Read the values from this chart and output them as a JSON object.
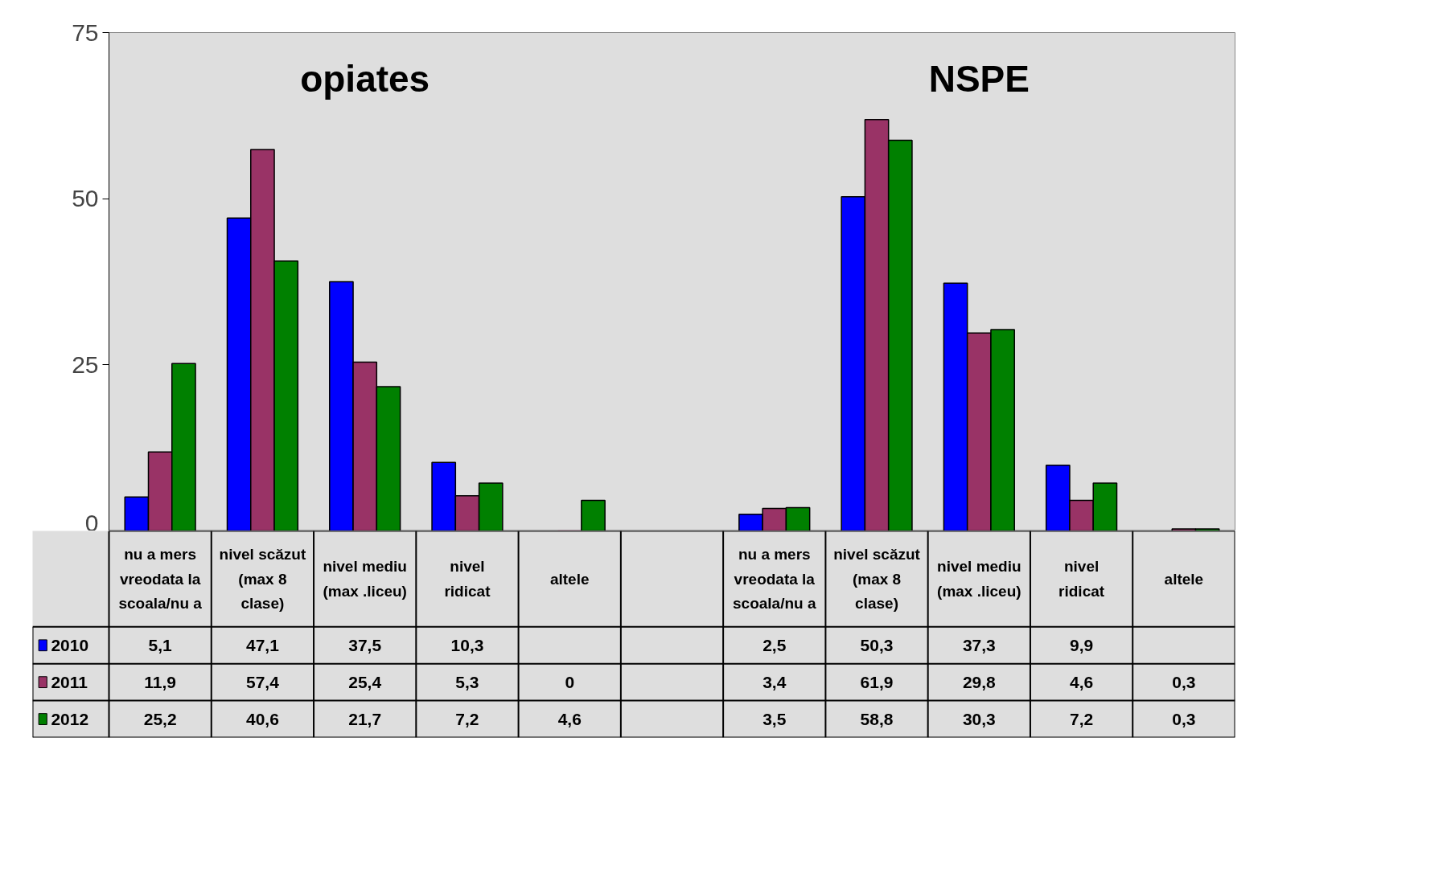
{
  "chart_data": {
    "type": "bar",
    "annotations": [
      "opiates",
      "NSPE"
    ],
    "categories": [
      "nu a mers vreodata la scoala/nu a",
      "nivel scăzut (max 8 clase)",
      "nivel mediu (max .liceu)",
      "nivel ridicat",
      "altele",
      null,
      "nu a mers vreodata la scoala/nu a",
      "nivel scăzut (max 8 clase)",
      "nivel mediu (max .liceu)",
      "nivel ridicat",
      "altele"
    ],
    "series": [
      {
        "name": "2010",
        "color": "#0000ff",
        "values": [
          5.1,
          47.1,
          37.5,
          10.3,
          null,
          null,
          2.5,
          50.3,
          37.3,
          9.9,
          null
        ],
        "value_labels": [
          "5,1",
          "47,1",
          "37,5",
          "10,3",
          null,
          null,
          "2,5",
          "50,3",
          "37,3",
          "9,9",
          null
        ]
      },
      {
        "name": "2011",
        "color": "#993366",
        "values": [
          11.9,
          57.4,
          25.4,
          5.3,
          0,
          null,
          3.4,
          61.9,
          29.8,
          4.6,
          0.3
        ],
        "value_labels": [
          "11,9",
          "57,4",
          "25,4",
          "5,3",
          "0",
          null,
          "3,4",
          "61,9",
          "29,8",
          "4,6",
          "0,3"
        ]
      },
      {
        "name": "2012",
        "color": "#008000",
        "values": [
          25.2,
          40.6,
          21.7,
          7.2,
          4.6,
          null,
          3.5,
          58.8,
          30.3,
          7.2,
          0.3
        ],
        "value_labels": [
          "25,2",
          "40,6",
          "21,7",
          "7,2",
          "4,6",
          null,
          "3,5",
          "58,8",
          "30,3",
          "7,2",
          "0,3"
        ]
      }
    ],
    "ylim": [
      0,
      75
    ],
    "yticks": [
      0,
      25,
      50,
      75
    ],
    "grid": false,
    "legend": "bottom"
  }
}
